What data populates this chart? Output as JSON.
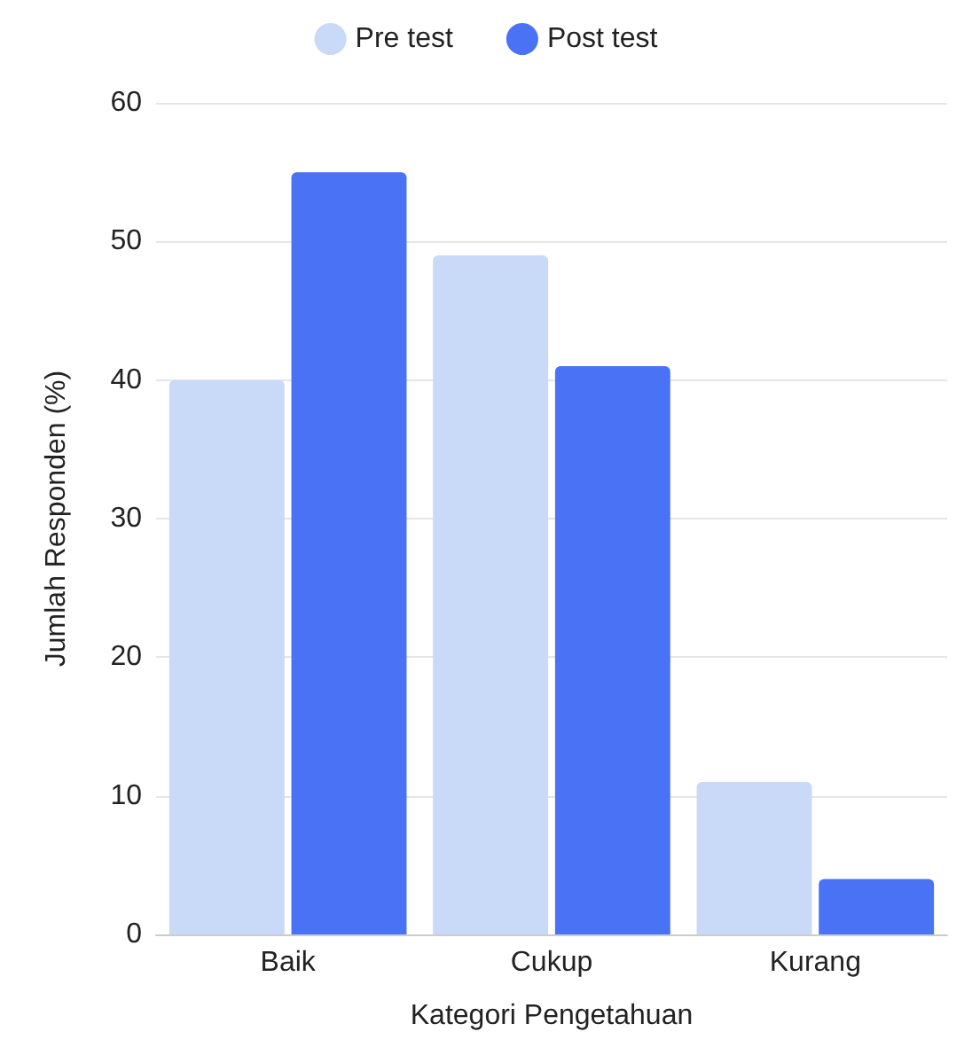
{
  "chart_data": {
    "type": "bar",
    "xlabel": "Kategori Pengetahuan",
    "ylabel": "Jumlah Responden (%)",
    "categories": [
      "Baik",
      "Cukup",
      "Kurang"
    ],
    "series": [
      {
        "name": "Pre test",
        "color": "#c9d9f8",
        "values": [
          40,
          49,
          11
        ]
      },
      {
        "name": "Post test",
        "color": "#4a72f5",
        "values": [
          55,
          41,
          4
        ]
      }
    ],
    "ylim": [
      0,
      60
    ],
    "yticks": [
      0,
      10,
      20,
      30,
      40,
      50,
      60
    ],
    "grid": "y",
    "legend": "top"
  }
}
